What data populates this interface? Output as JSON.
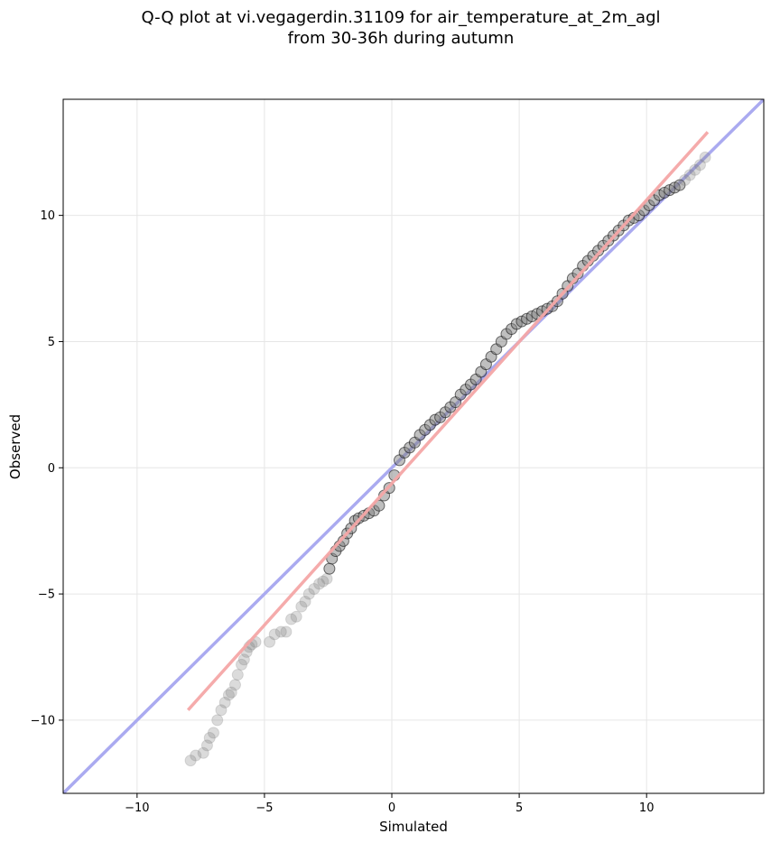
{
  "chart_data": {
    "type": "scatter",
    "title": [
      "Q-Q plot at vi.vegagerdin.31109 for air_temperature_at_2m_agl",
      "from 30-36h during autumn"
    ],
    "xlabel": "Simulated",
    "ylabel": "Observed",
    "xlim": [
      -12.9,
      14.6
    ],
    "ylim": [
      -12.9,
      14.6
    ],
    "xticks": [
      -10,
      -5,
      0,
      5,
      10
    ],
    "yticks": [
      -10,
      -5,
      0,
      5,
      10
    ],
    "xtick_labels": [
      "−10",
      "−5",
      "0",
      "5",
      "10"
    ],
    "ytick_labels": [
      "−10",
      "−5",
      "0",
      "5",
      "10"
    ],
    "grid": true,
    "colors": {
      "identity_line": "#aaaaf0",
      "fit_line": "#f4a6a6",
      "points": "#7f7f7f",
      "points_dense_edge": "#000000"
    },
    "identity_line": {
      "x": [
        -12.9,
        14.6
      ],
      "y": [
        -12.9,
        14.6
      ]
    },
    "fit_line": {
      "x": [
        -8.0,
        12.4
      ],
      "y": [
        -9.6,
        13.3
      ]
    },
    "quantiles": {
      "x": [
        -7.9,
        -7.7,
        -7.4,
        -7.25,
        -7.15,
        -7.0,
        -6.85,
        -6.7,
        -6.55,
        -6.4,
        -6.3,
        -6.15,
        -6.05,
        -5.9,
        -5.8,
        -5.7,
        -5.6,
        -5.5,
        -5.35,
        -4.8,
        -4.6,
        -4.35,
        -4.15,
        -3.95,
        -3.75,
        -3.55,
        -3.4,
        -3.25,
        -3.05,
        -2.85,
        -2.7,
        -2.55,
        -2.45,
        -2.35,
        -2.2,
        -2.05,
        -1.9,
        -1.75,
        -1.6,
        -1.45,
        -1.3,
        -1.1,
        -0.9,
        -0.7,
        -0.5,
        -0.3,
        -0.1,
        0.1,
        0.3,
        0.5,
        0.7,
        0.9,
        1.1,
        1.3,
        1.5,
        1.7,
        1.9,
        2.1,
        2.3,
        2.5,
        2.7,
        2.9,
        3.1,
        3.3,
        3.5,
        3.7,
        3.9,
        4.1,
        4.3,
        4.5,
        4.7,
        4.9,
        5.1,
        5.3,
        5.5,
        5.7,
        5.9,
        6.1,
        6.3,
        6.5,
        6.7,
        6.9,
        7.1,
        7.3,
        7.5,
        7.7,
        7.9,
        8.1,
        8.3,
        8.5,
        8.7,
        8.9,
        9.1,
        9.3,
        9.5,
        9.7,
        9.9,
        10.1,
        10.3,
        10.5,
        10.7,
        10.9,
        11.1,
        11.3,
        11.5,
        11.7,
        11.9,
        12.1,
        12.3
      ],
      "y": [
        -11.6,
        -11.4,
        -11.3,
        -11.0,
        -10.7,
        -10.5,
        -10.0,
        -9.6,
        -9.3,
        -9.0,
        -8.9,
        -8.6,
        -8.2,
        -7.8,
        -7.6,
        -7.3,
        -7.1,
        -7.0,
        -6.9,
        -6.9,
        -6.6,
        -6.5,
        -6.5,
        -6.0,
        -5.9,
        -5.5,
        -5.3,
        -5.0,
        -4.8,
        -4.6,
        -4.5,
        -4.4,
        -4.0,
        -3.6,
        -3.3,
        -3.1,
        -2.9,
        -2.6,
        -2.4,
        -2.1,
        -2.0,
        -1.9,
        -1.8,
        -1.7,
        -1.5,
        -1.1,
        -0.8,
        -0.3,
        0.3,
        0.6,
        0.8,
        1.0,
        1.3,
        1.5,
        1.7,
        1.9,
        2.0,
        2.2,
        2.4,
        2.6,
        2.9,
        3.1,
        3.3,
        3.5,
        3.8,
        4.1,
        4.4,
        4.7,
        5.0,
        5.3,
        5.5,
        5.7,
        5.8,
        5.9,
        6.0,
        6.1,
        6.2,
        6.3,
        6.4,
        6.6,
        6.9,
        7.2,
        7.5,
        7.7,
        8.0,
        8.2,
        8.4,
        8.6,
        8.8,
        9.0,
        9.2,
        9.4,
        9.6,
        9.8,
        9.9,
        10.0,
        10.2,
        10.4,
        10.6,
        10.8,
        10.9,
        11.0,
        11.1,
        11.2,
        11.4,
        11.6,
        11.8,
        12.0,
        12.3
      ]
    }
  }
}
